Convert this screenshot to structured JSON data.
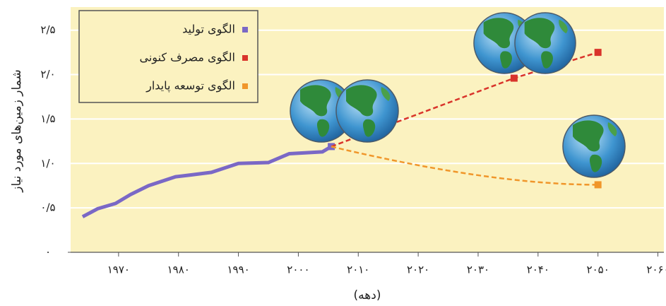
{
  "chart_data": {
    "type": "line",
    "y_label": "شمار زمین‌های مورد نیاز",
    "x_label": "(دهه)",
    "series": [
      {
        "name": "الگوی تولید",
        "color": "#7a68c6",
        "x": [
          1964,
          1966.5,
          1969.5,
          1972,
          1975,
          1979.5,
          1982,
          1985.5,
          1990,
          1995,
          1998.5,
          2004,
          2005.5
        ],
        "values": [
          0.4,
          0.49,
          0.55,
          0.65,
          0.75,
          0.85,
          0.87,
          0.9,
          1.0,
          1.01,
          1.11,
          1.13,
          1.19
        ]
      },
      {
        "name": "الگوی مصرف کنونی",
        "color": "#d9342b",
        "x": [
          2005.5,
          2036,
          2050
        ],
        "values": [
          1.19,
          1.96,
          2.25
        ]
      },
      {
        "name": "الگوی توسعه پایدار",
        "color": "#f0962a",
        "x": [
          2005.5,
          2050
        ],
        "values": [
          1.19,
          0.76
        ]
      }
    ],
    "xlim": [
      1962,
      2061
    ],
    "xticks": [
      {
        "value": 1970,
        "label": "۱۹۷۰"
      },
      {
        "value": 1980,
        "label": "۱۹۸۰"
      },
      {
        "value": 1990,
        "label": "۱۹۹۰"
      },
      {
        "value": 2000,
        "label": "۲۰۰۰"
      },
      {
        "value": 2010,
        "label": "۲۰۱۰"
      },
      {
        "value": 2020,
        "label": "۲۰۲۰"
      },
      {
        "value": 2030,
        "label": "۲۰۳۰"
      },
      {
        "value": 2040,
        "label": "۲۰۴۰"
      },
      {
        "value": 2050,
        "label": "۲۰۵۰"
      },
      {
        "value": 2060,
        "label": "۲۰۶۰"
      }
    ],
    "ylim": [
      0,
      2.76
    ],
    "yticks": [
      {
        "value": 0,
        "label": "۰"
      },
      {
        "value": 0.5,
        "label": "۰/۵"
      },
      {
        "value": 1.0,
        "label": "۱/۰"
      },
      {
        "value": 1.5,
        "label": "۱/۵"
      },
      {
        "value": 2.0,
        "label": "۲/۰"
      },
      {
        "value": 2.5,
        "label": "۲/۵"
      }
    ],
    "grid": true,
    "legend": "upper left"
  }
}
